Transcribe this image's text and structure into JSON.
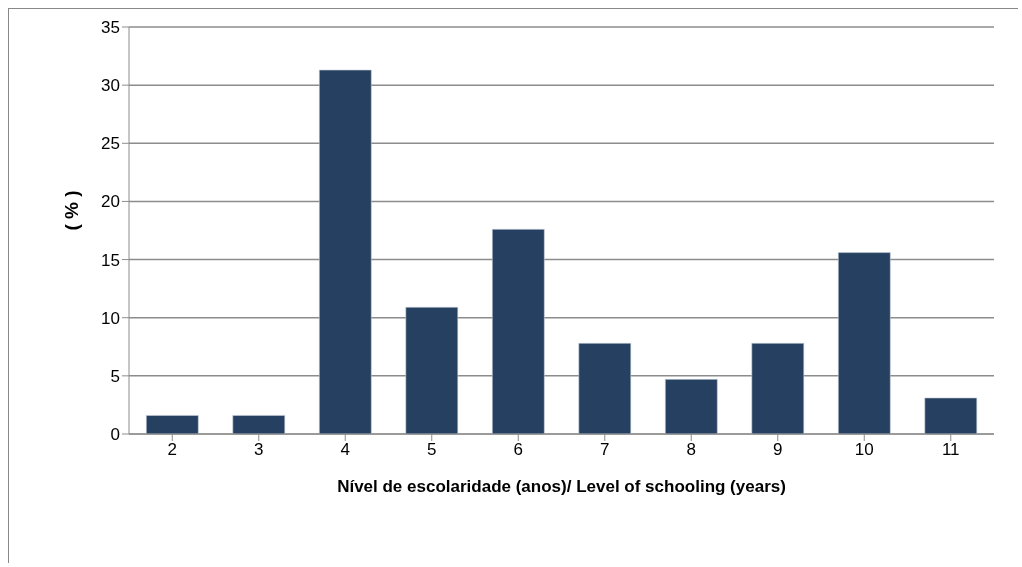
{
  "chart_data": {
    "type": "bar",
    "categories": [
      "2",
      "3",
      "4",
      "5",
      "6",
      "7",
      "8",
      "9",
      "10",
      "11"
    ],
    "values": [
      1.6,
      1.6,
      31.3,
      10.9,
      17.6,
      7.8,
      4.7,
      7.8,
      15.6,
      3.1
    ],
    "color": "#264061",
    "xlabel": "Nível de escolaridade (anos)/ Level of schooling (years)",
    "ylabel": "( % )",
    "ylim": [
      0,
      35
    ],
    "yticks": [
      0,
      5,
      10,
      15,
      20,
      25,
      30,
      35
    ],
    "grid": "y",
    "legend": false
  }
}
